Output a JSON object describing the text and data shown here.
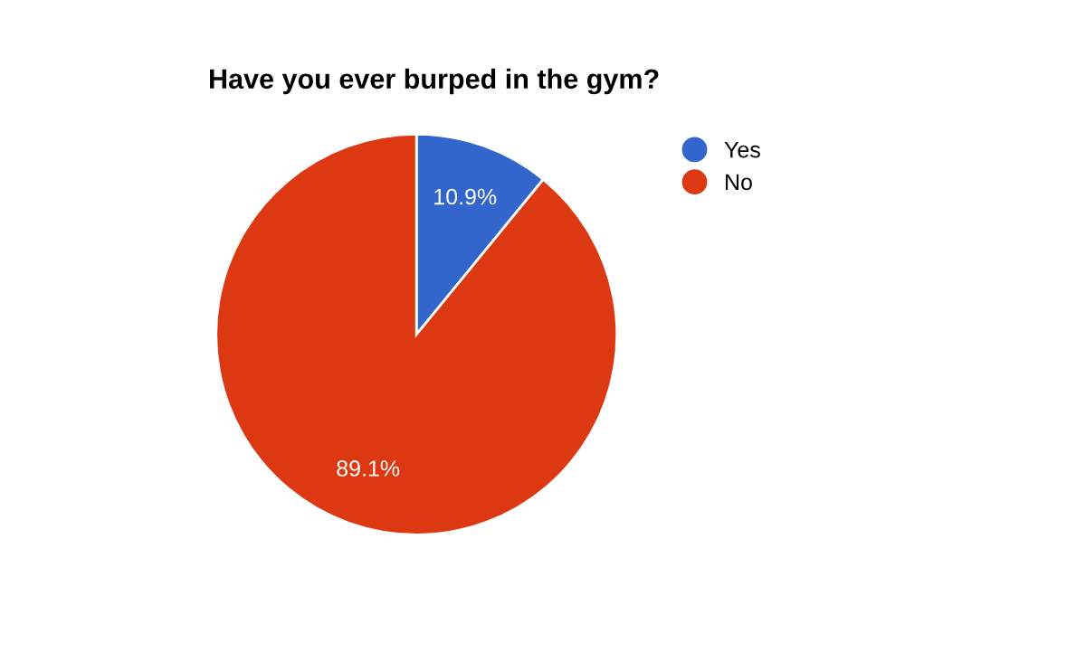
{
  "chart_data": {
    "type": "pie",
    "title": "Have you ever burped in the gym?",
    "categories": [
      "Yes",
      "No"
    ],
    "values": [
      10.9,
      89.1
    ],
    "colors": [
      "#3366cc",
      "#dc3912"
    ],
    "value_labels": [
      "10.9%",
      "89.1%"
    ],
    "legend": "top right"
  }
}
